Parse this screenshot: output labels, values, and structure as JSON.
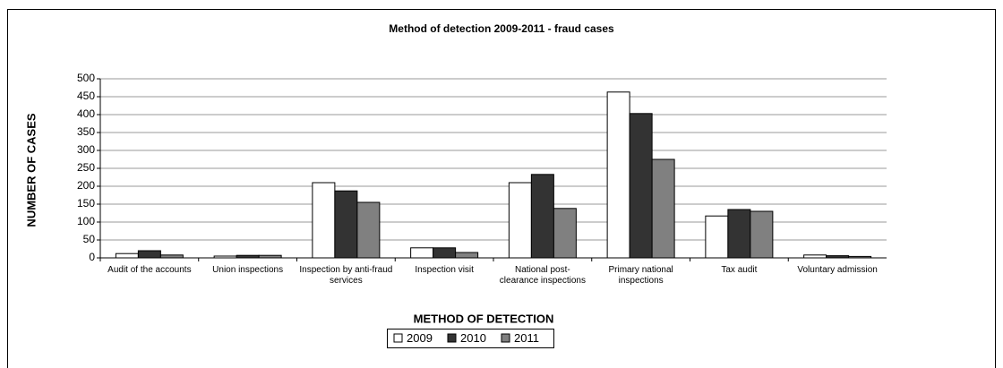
{
  "chart_data": {
    "type": "bar",
    "title": "Method of detection 2009-2011 - fraud cases",
    "x_label": "METHOD OF DETECTION",
    "y_label": "NUMBER OF CASES",
    "categories": [
      "Audit of the accounts",
      "Union inspections",
      "Inspection by anti-fraud services",
      "Inspection visit",
      "National post-clearance inspections",
      "Primary national inspections",
      "Tax audit",
      "Voluntary admission"
    ],
    "series": [
      {
        "name": "2009",
        "color": "#ffffff",
        "values": [
          12,
          5,
          210,
          28,
          210,
          463,
          117,
          8
        ]
      },
      {
        "name": "2010",
        "color": "#333333",
        "values": [
          20,
          7,
          187,
          28,
          233,
          403,
          135,
          6
        ]
      },
      {
        "name": "2011",
        "color": "#808080",
        "values": [
          8,
          7,
          155,
          15,
          138,
          275,
          130,
          4
        ]
      }
    ],
    "ylim": [
      0,
      500
    ],
    "yticks": [
      0,
      50,
      100,
      150,
      200,
      250,
      300,
      350,
      400,
      450,
      500
    ],
    "grid": true,
    "legend": "bottom"
  }
}
